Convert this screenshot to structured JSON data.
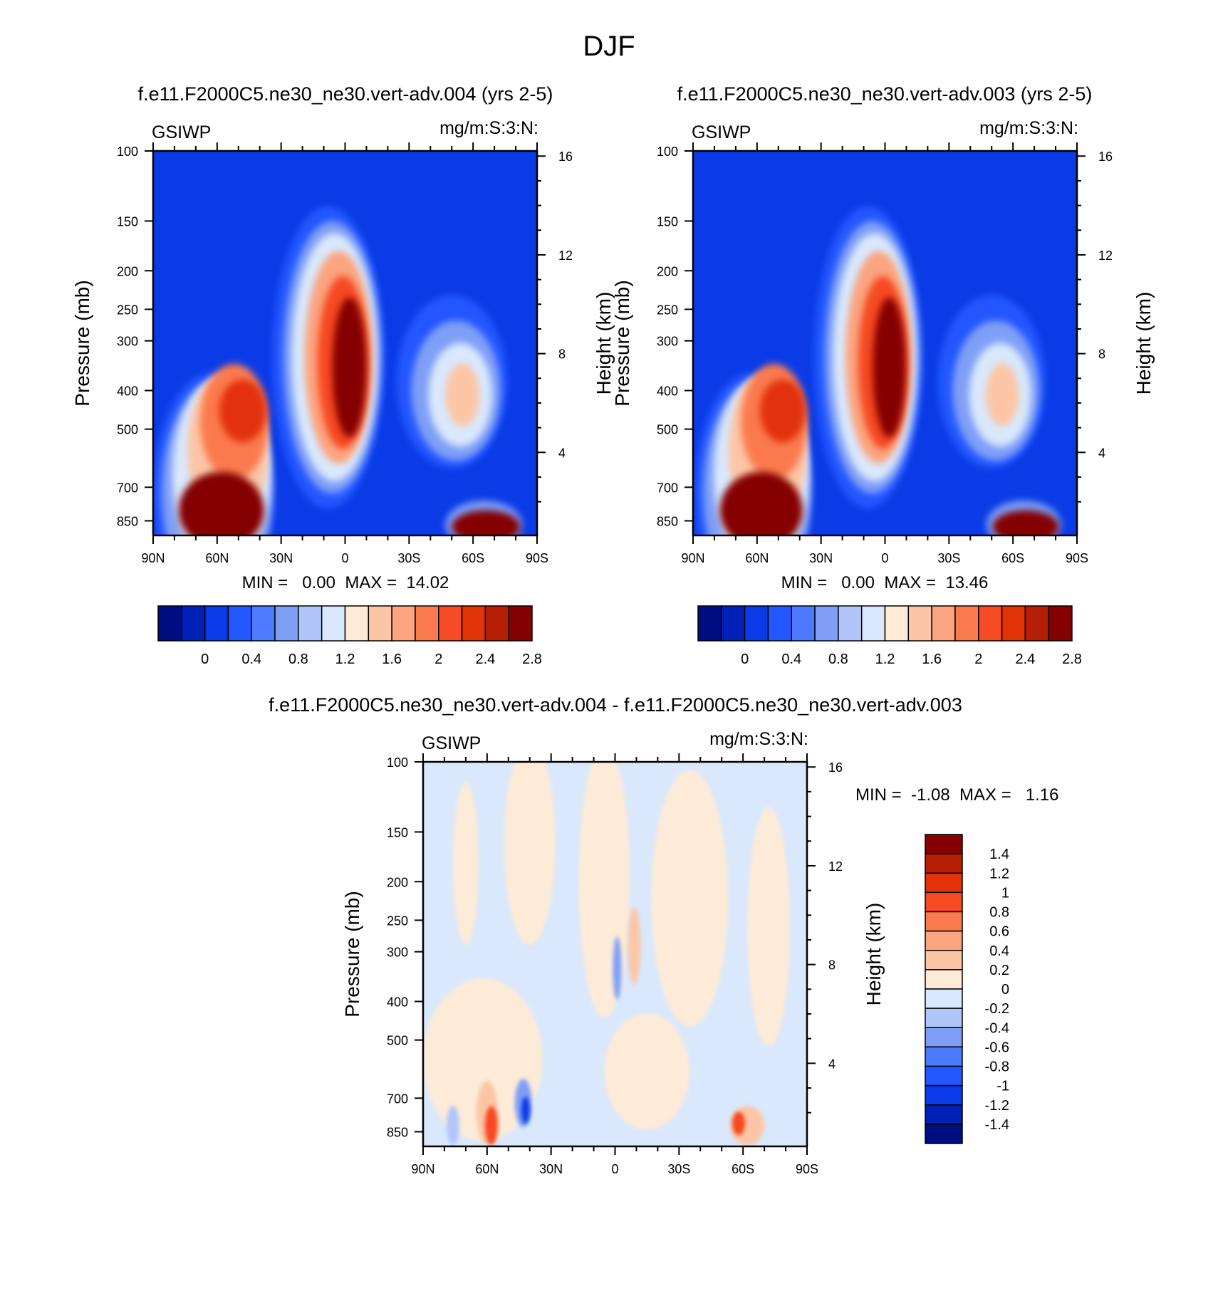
{
  "figure": {
    "title": "DJF"
  },
  "colors": {
    "axis": "#000000",
    "background": "#ffffff"
  },
  "chart_data": [
    {
      "type": "heatmap",
      "id": "panel-a",
      "title": "f.e11.F2000C5.ne30_ne30.vert-adv.004 (yrs 2-5)",
      "variable": "GSIWP",
      "units": "mg/m:S:3:N:",
      "ylabel": "Pressure (mb)",
      "y2label": "Height (km)",
      "x_ticks": [
        "90N",
        "60N",
        "30N",
        "0",
        "30S",
        "60S",
        "90S"
      ],
      "x_tick_values": [
        90,
        60,
        30,
        0,
        -30,
        -60,
        -90
      ],
      "y_ticks": [
        "100",
        "150",
        "200",
        "250",
        "300",
        "400",
        "500",
        "700",
        "850"
      ],
      "y_tick_values": [
        100,
        150,
        200,
        250,
        300,
        400,
        500,
        700,
        850
      ],
      "y2_ticks": [
        "16",
        "12",
        "8",
        "4"
      ],
      "y2_tick_values": [
        16,
        12,
        8,
        4
      ],
      "ylim": [
        100,
        925
      ],
      "y_scale": "log",
      "xlim": [
        90,
        -90
      ],
      "min_max_text": "MIN =   0.00  MAX =  14.02",
      "contour_levels": [
        0,
        0.2,
        0.4,
        0.6,
        0.8,
        1,
        1.2,
        1.4,
        1.6,
        1.8,
        2,
        2.2,
        2.4,
        2.6,
        2.8
      ],
      "colorbar": {
        "orientation": "horizontal",
        "labels": [
          "0",
          "0.4",
          "0.8",
          "1.2",
          "1.6",
          "2",
          "2.4",
          "2.8"
        ],
        "colors": [
          "#000e82",
          "#0021b8",
          "#0a3be6",
          "#2357ff",
          "#4d7bff",
          "#7f9ff7",
          "#b0c6fb",
          "#d9e8fc",
          "#fdebd8",
          "#fcc6a6",
          "#fba47f",
          "#fb7a4d",
          "#f64a22",
          "#e23308",
          "#b71e06",
          "#850103"
        ]
      }
    },
    {
      "type": "heatmap",
      "id": "panel-b",
      "title": "f.e11.F2000C5.ne30_ne30.vert-adv.003 (yrs 2-5)",
      "variable": "GSIWP",
      "units": "mg/m:S:3:N:",
      "ylabel": "Pressure (mb)",
      "y2label": "Height (km)",
      "x_ticks": [
        "90N",
        "60N",
        "30N",
        "0",
        "30S",
        "60S",
        "90S"
      ],
      "x_tick_values": [
        90,
        60,
        30,
        0,
        -30,
        -60,
        -90
      ],
      "y_ticks": [
        "100",
        "150",
        "200",
        "250",
        "300",
        "400",
        "500",
        "700",
        "850"
      ],
      "y_tick_values": [
        100,
        150,
        200,
        250,
        300,
        400,
        500,
        700,
        850
      ],
      "y2_ticks": [
        "16",
        "12",
        "8",
        "4"
      ],
      "y2_tick_values": [
        16,
        12,
        8,
        4
      ],
      "ylim": [
        100,
        925
      ],
      "y_scale": "log",
      "xlim": [
        90,
        -90
      ],
      "min_max_text": "MIN =   0.00  MAX =  13.46",
      "contour_levels": [
        0,
        0.2,
        0.4,
        0.6,
        0.8,
        1,
        1.2,
        1.4,
        1.6,
        1.8,
        2,
        2.2,
        2.4,
        2.6,
        2.8
      ],
      "colorbar": {
        "orientation": "horizontal",
        "labels": [
          "0",
          "0.4",
          "0.8",
          "1.2",
          "1.6",
          "2",
          "2.4",
          "2.8"
        ],
        "colors": [
          "#000e82",
          "#0021b8",
          "#0a3be6",
          "#2357ff",
          "#4d7bff",
          "#7f9ff7",
          "#b0c6fb",
          "#d9e8fc",
          "#fdebd8",
          "#fcc6a6",
          "#fba47f",
          "#fb7a4d",
          "#f64a22",
          "#e23308",
          "#b71e06",
          "#850103"
        ]
      }
    },
    {
      "type": "heatmap",
      "id": "panel-diff",
      "title": "f.e11.F2000C5.ne30_ne30.vert-adv.004 - f.e11.F2000C5.ne30_ne30.vert-adv.003",
      "variable": "GSIWP",
      "units": "mg/m:S:3:N:",
      "ylabel": "Pressure (mb)",
      "y2label": "Height (km)",
      "x_ticks": [
        "90N",
        "60N",
        "30N",
        "0",
        "30S",
        "60S",
        "90S"
      ],
      "x_tick_values": [
        90,
        60,
        30,
        0,
        -30,
        -60,
        -90
      ],
      "y_ticks": [
        "100",
        "150",
        "200",
        "250",
        "300",
        "400",
        "500",
        "700",
        "850"
      ],
      "y_tick_values": [
        100,
        150,
        200,
        250,
        300,
        400,
        500,
        700,
        850
      ],
      "y2_ticks": [
        "16",
        "12",
        "8",
        "4"
      ],
      "y2_tick_values": [
        16,
        12,
        8,
        4
      ],
      "ylim": [
        100,
        925
      ],
      "y_scale": "log",
      "xlim": [
        90,
        -90
      ],
      "min_max_text": "MIN =  -1.08  MAX =   1.16",
      "contour_levels": [
        -1.4,
        -1.2,
        -1,
        -0.8,
        -0.6,
        -0.4,
        -0.2,
        0,
        0.2,
        0.4,
        0.6,
        0.8,
        1,
        1.2,
        1.4
      ],
      "colorbar": {
        "orientation": "vertical",
        "labels": [
          "1.4",
          "1.2",
          "1",
          "0.8",
          "0.6",
          "0.4",
          "0.2",
          "0",
          "-0.2",
          "-0.4",
          "-0.6",
          "-0.8",
          "-1",
          "-1.2",
          "-1.4"
        ],
        "colors": [
          "#850103",
          "#b71e06",
          "#e23308",
          "#f64a22",
          "#fb7a4d",
          "#fba47f",
          "#fcc6a6",
          "#fdebd8",
          "#d9e8fc",
          "#b0c6fb",
          "#7f9ff7",
          "#4d7bff",
          "#2357ff",
          "#0a3be6",
          "#0021b8",
          "#000e82"
        ]
      }
    }
  ]
}
